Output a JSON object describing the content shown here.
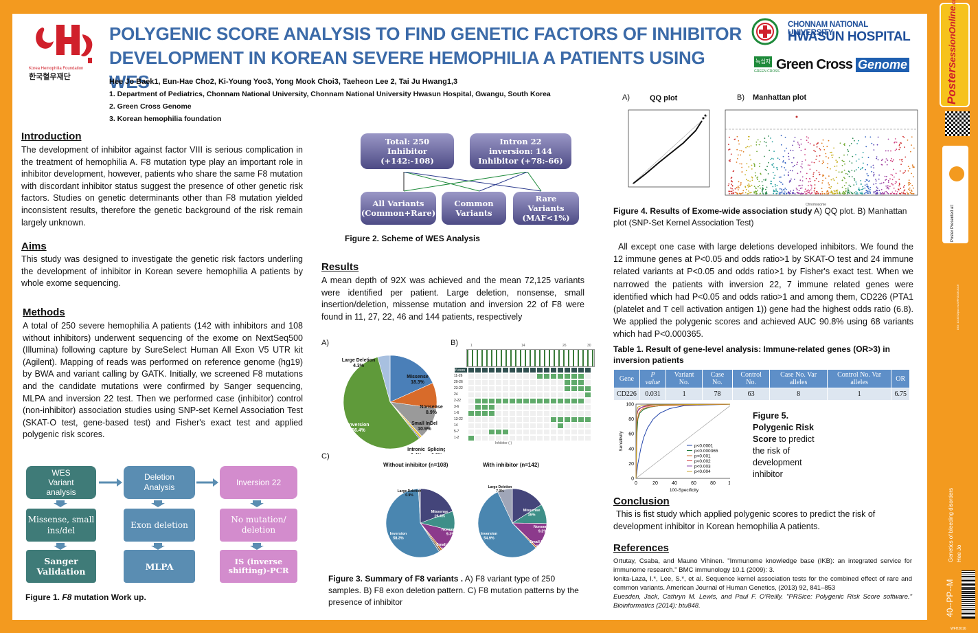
{
  "title_line1": "POLYGENIC SCORE ANALYSIS TO FIND GENETIC FACTORS OF INHIBITOR",
  "title_line2": "DEVELOPMENT  IN KOREAN SEVERE HEMOPHILIA A PATIENTS USING WES",
  "authors": "Hee Jo Baek1, Eun-Hae Cho2, Ki-Young Yoo3, Yong Mook Choi3,  Taeheon Lee 2,  Tai Ju Hwang1,3",
  "affiliations": [
    "1. Department of Pediatrics, Chonnam National University, Chonnam National University  Hwasun Hospital, Gwangu, South Korea",
    "2. Green Cross Genome",
    "3.  Korean hemophilia foundation"
  ],
  "logos": {
    "left_caption": "Korea Hemophilia Foundation",
    "left_korean": "한국혈우재단",
    "hospital_line1": "CHONNAM NATIONAL UNIVERSITY",
    "hospital_line2": "HWASUN HOSPITAL",
    "greencross": "Green Cross",
    "genome": "Genome",
    "greencross_small": "GREEN CROSS",
    "cross_kr": "녹십자"
  },
  "intro": {
    "heading": "Introduction",
    "text": "The development of inhibitor against factor VIII is serious complication in the treatment of hemophilia A. F8 mutation type play an important role in inhibitor development, however, patients who share the same F8 mutation with discordant inhibitor status suggest the presence of other genetic risk factors. Studies on genetic determinants other than F8 mutation yielded inconsistent results, therefore the genetic background of the risk remain largely unknown."
  },
  "aims": {
    "heading": "Aims",
    "text": "This study was designed to investigate the genetic risk factors underling the development of inhibitor in Korean severe hemophilia A patients by whole exome sequencing."
  },
  "methods": {
    "heading": "Methods",
    "text": "A total of 250 severe hemophilia A patients (142 with inhibitors and 108 without inhibitors) underwent sequencing of the exome on NextSeq500 (Illumina) following capture by SureSelect Human All Exon V5 UTR kit (Agilent). Mapping of reads was performed on reference genome (hg19) by BWA and variant calling by GATK. Initially, we screened F8 mutations and the candidate mutations were confirmed by Sanger sequencing, MLPA and inversion 22 test. Then we performed case (inhibitor) control (non-inhibitor) association studies using SNP-set Kernel Association Test (SKAT-O test, gene-based test) and Fisher's exact test and applied polygenic risk scores."
  },
  "fig1": {
    "boxes": [
      "WES Variant analysis",
      "Deletion Analysis",
      "Inversion 22",
      "Missense, small ins/del",
      "Exon deletion",
      "No mutation/ deletion",
      "Sanger Validation",
      "MLPA",
      "IS (inverse shifting)-PCR"
    ],
    "caption_prefix": "Figure 1. ",
    "caption_em": "F8",
    "caption_rest": " mutation Work up."
  },
  "fig2": {
    "boxes": [
      "Total: 250 Inhibitor (+142:-108)",
      "Intron 22 inversion: 144 Inhibitor (+78:-66)",
      "All Variants (Common+Rare)",
      "Common Variants",
      "Rare Variants (MAF<1%)"
    ],
    "caption": "Figure 2. Scheme  of WES Analysis"
  },
  "results": {
    "heading": "Results",
    "text": "A mean depth of 92X was achieved and the mean 72,125 variants were identified per patient. Large deletion, nonsense, small insertion/deletion, missense mutation and inversion 22 of F8 were found in 11, 27, 22, 46 and 144 patients, respectively"
  },
  "fig3": {
    "panel_a": "A)",
    "panel_b": "B)",
    "panel_c": "C)",
    "without_title": "Without inhibitor (n=108)",
    "with_title": "With inhibitor (n=142)",
    "caption_bold": "Figure 3. Summary of F8 variants .",
    "caption_rest": " A) F8 variant type of 250 samples. B) F8 exon deletion pattern. C) F8 mutation patterns by the presence of inhibitor",
    "exon_header": "# exon",
    "exon_rows": [
      "11-26",
      "20-26",
      "23-22",
      "24",
      "2-22",
      "3-6",
      "1-6",
      "13-22",
      "14",
      "5-7",
      "1-2"
    ],
    "exon_ruler": [
      "1",
      "14",
      "26",
      "30"
    ],
    "exon_note": "Inhibitor (-)"
  },
  "chart_data": [
    {
      "type": "pie",
      "title": "",
      "slices": [
        {
          "label": "Missense",
          "value": 18.3,
          "color": "#4a7fb8"
        },
        {
          "label": "Nonsense",
          "value": 8.9,
          "color": "#d86b2a"
        },
        {
          "label": "Small InDel",
          "value": 10.9,
          "color": "#9a9a9a"
        },
        {
          "label": "Splicing",
          "value": 0.8,
          "color": "#e8c23a"
        },
        {
          "label": "Intronic",
          "value": 0.4,
          "color": "#5a5fa8"
        },
        {
          "label": "Inversion",
          "value": 56.4,
          "color": "#5f9a3a"
        },
        {
          "label": "Large Deletion",
          "value": 4.3,
          "color": "#a8c0e0"
        }
      ],
      "labels": [
        "Missense 18.3%",
        "Nonsense 8.9%",
        "Small InDel 10.9%",
        "Splicing 0.8%",
        "Intronic 0.4%",
        "Inversion 56.4%",
        "Large Deletion 4.3%"
      ]
    },
    {
      "type": "pie",
      "title": "Without inhibitor (n=108)",
      "slices": [
        {
          "label": "Missense",
          "value": 19.4,
          "color": "#44457a"
        },
        {
          "label": "Nonsense",
          "value": 9.3,
          "color": "#3e8f88"
        },
        {
          "label": "Small InDel",
          "value": 10.2,
          "color": "#8c3a8c"
        },
        {
          "label": "Splicing",
          "value": 0.9,
          "color": "#c46f28"
        },
        {
          "label": "Intronic",
          "value": 0.9,
          "color": "#777"
        },
        {
          "label": "Inversion",
          "value": 58.3,
          "color": "#4a86b0"
        },
        {
          "label": "Large Deletion",
          "value": 0.9,
          "color": "#a0a6b8"
        }
      ],
      "labels": [
        "Missense 19.4%",
        "Nonsense 9.3%",
        "Small InDel 10.2%",
        "Splicing 0.9%",
        "Intronic 0.9%",
        "Inversion 58.3%",
        "Large Deletion 0.9%"
      ]
    },
    {
      "type": "pie",
      "title": "With inhibitor (n=142)",
      "slices": [
        {
          "label": "Missense",
          "value": 16,
          "color": "#44457a"
        },
        {
          "label": "Nonsense",
          "value": 9.2,
          "color": "#3e8f88"
        },
        {
          "label": "Small InDel",
          "value": 12,
          "color": "#8c3a8c"
        },
        {
          "label": "Splicing",
          "value": 0.7,
          "color": "#c46f28"
        },
        {
          "label": "Intronic",
          "value": 0,
          "color": "#777"
        },
        {
          "label": "Inversion",
          "value": 54.9,
          "color": "#4a86b0"
        },
        {
          "label": "Large Deletion",
          "value": 7.0,
          "color": "#a0a6b8"
        }
      ],
      "labels": [
        "Missense 16%",
        "Nonsense 9.2%",
        "Small InDel 12%",
        "Splicing 0.7%",
        "Intronic 0.0%",
        "Inversion 54.9%",
        "Large Deletion 7.0%"
      ]
    },
    {
      "type": "line",
      "title": "",
      "xlabel": "100-Specificity",
      "ylabel": "Sensitivity",
      "xlim": [
        0,
        100
      ],
      "ylim": [
        0,
        100
      ],
      "xticks": [
        "0",
        "20",
        "40",
        "60",
        "80",
        "100"
      ],
      "yticks": [
        "0",
        "20",
        "40",
        "60",
        "80",
        "100"
      ],
      "series": [
        {
          "name": "p<0.0001",
          "color": "#2244aa",
          "x": [
            0,
            2,
            5,
            8,
            12,
            18,
            25,
            35,
            50,
            100
          ],
          "y": [
            0,
            20,
            40,
            55,
            68,
            80,
            88,
            94,
            98,
            100
          ]
        },
        {
          "name": "p<0.000365",
          "color": "#1e7a3a",
          "x": [
            0,
            1,
            2,
            4,
            8,
            15,
            30,
            100
          ],
          "y": [
            0,
            60,
            80,
            88,
            93,
            96,
            99,
            100
          ]
        },
        {
          "name": "p<0.001",
          "color": "#d07030",
          "x": [
            0,
            1,
            3,
            6,
            12,
            25,
            100
          ],
          "y": [
            0,
            75,
            88,
            93,
            96,
            98,
            100
          ]
        },
        {
          "name": "p<0.002",
          "color": "#cc3030",
          "x": [
            0,
            1,
            2,
            5,
            10,
            20,
            100
          ],
          "y": [
            0,
            85,
            91,
            95,
            97,
            99,
            100
          ]
        },
        {
          "name": "p<0.003",
          "color": "#8844aa",
          "x": [
            0,
            1,
            3,
            8,
            15,
            100
          ],
          "y": [
            0,
            88,
            94,
            97,
            99,
            100
          ]
        },
        {
          "name": "p<0.004",
          "color": "#c8a020",
          "x": [
            0,
            1,
            2,
            6,
            12,
            100
          ],
          "y": [
            0,
            92,
            96,
            98,
            99,
            100
          ]
        }
      ]
    }
  ],
  "fig4": {
    "label_a": "A)",
    "title_a": "QQ plot",
    "label_b": "B)",
    "title_b": "Manhattan plot",
    "caption_bold": "Figure 4. Results of Exome-wide association study",
    "caption_rest": "  A) QQ plot. B) Manhattan plot  (SNP-Set Kernel Association Test)",
    "chromosome_label": "Chromosome"
  },
  "results_text2": "All except one case with large deletions developed inhibitors. We found the 12 immune genes at P<0.05 and odds ratio>1 by SKAT-O test and 24 immune related variants at P<0.05 and odds ratio>1 by Fisher's exact test. When we narrowed the patients with inversion 22, 7 immune related genes were identified which had P<0.05 and odds ratio>1 and among them, CD226 (PTA1 (platelet and T cell activation antigen 1)) gene had the highest odds ratio (6.8). We applied the polygenic scores and achieved AUC 90.8% using 68 variants which had P<0.000365.",
  "table1": {
    "caption": "Table 1.  Result of gene-level analysis: Immune-related genes  (OR>3) in inversion patients",
    "headers": [
      "Gene",
      "P value",
      "Variant No.",
      "Case No.",
      "Control No.",
      "Case No. Var alleles",
      "Control No. Var alleles",
      "OR"
    ],
    "row": [
      "CD226",
      "0.031",
      "1",
      "78",
      "63",
      "8",
      "1",
      "6.75"
    ]
  },
  "fig5": {
    "caption_bold": "Figure 5. Polygenic Risk Score",
    "caption_rest": " to predict the risk of development inhibitor"
  },
  "conclusion": {
    "heading": "Conclusion",
    "text": "This is fist study which applied polygenic scores to predict the risk of development inhibitor in Korean hemophilia A patients."
  },
  "references": {
    "heading": "References",
    "items": [
      "Ortutay, Csaba, and Mauno Vihinen.  \"Immunome knowledge base (IKB): an integrated service for immunome research.\" BMC immunology 10.1 (2009): 3.",
      "Ionita-Laza, I.*, Lee, S.*, et al. Sequence kernel association tests for the combined effect of rare and common variants.  American Journal of Human Genetics, (2013)  92, 841–853",
      "Euesden, Jack, Cathryn M. Lewis, and Paul F. O'Reilly. \"PRSice: Polygenic Risk Score software.\" Bioinformatics (2014): btu848."
    ]
  },
  "rail": {
    "brand1": "Poster",
    "brand2": "SessionOnline",
    "brand3": ".com",
    "presented": "Poster Presented at:",
    "doi": "DOI: 10.3252/pso.eu.WFH2016.2016",
    "topic": "Genetics of bleeding disorders",
    "author": "Hee Jo",
    "code": "40--PP--M",
    "small": "WFH2016"
  },
  "colors": {
    "accent": "#3b6aa8",
    "frame": "#f39a1f"
  }
}
